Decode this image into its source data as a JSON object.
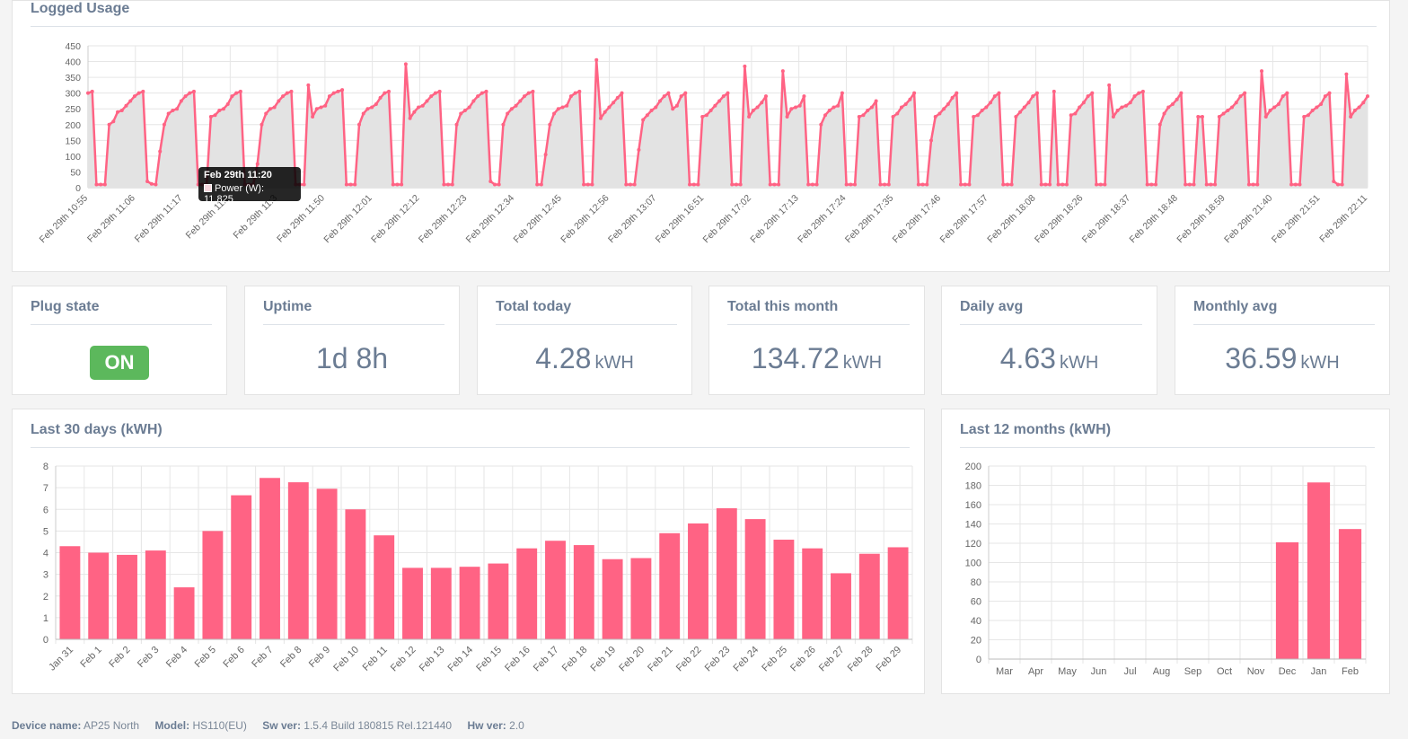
{
  "logged_usage": {
    "title": "Logged Usage",
    "tooltip": {
      "title": "Feb 29th 11:20",
      "label": "Power (W): 11.825"
    }
  },
  "stats": {
    "plug_state": {
      "title": "Plug state",
      "value": "ON"
    },
    "uptime": {
      "title": "Uptime",
      "value": "1d 8h"
    },
    "total_today": {
      "title": "Total today",
      "value": "4.28",
      "unit": "kWH"
    },
    "total_month": {
      "title": "Total this month",
      "value": "134.72",
      "unit": "kWH"
    },
    "daily_avg": {
      "title": "Daily avg",
      "value": "4.63",
      "unit": "kWH"
    },
    "monthly_avg": {
      "title": "Monthly avg",
      "value": "36.59",
      "unit": "kWH"
    }
  },
  "last30": {
    "title": "Last 30 days (kWH)"
  },
  "last12": {
    "title": "Last 12 months (kWH)"
  },
  "footer": {
    "device_label": "Device name:",
    "device_value": "AP25 North",
    "model_label": "Model:",
    "model_value": "HS110(EU)",
    "sw_label": "Sw ver:",
    "sw_value": "1.5.4 Build 180815 Rel.121440",
    "hw_label": "Hw ver:",
    "hw_value": "2.0"
  },
  "colors": {
    "accent": "#ff6384",
    "fill": "#e3e3e3",
    "on": "#5cb85c",
    "text": "#6b7c93"
  },
  "chart_data": [
    {
      "type": "area",
      "series": [
        {
          "name": "Power (W)"
        }
      ],
      "ylim": [
        0,
        450
      ],
      "yticks": [
        0,
        50,
        100,
        150,
        200,
        250,
        300,
        350,
        400,
        450
      ],
      "x_tick_labels": [
        "Feb 29th 10:55",
        "Feb 29th 11:06",
        "Feb 29th 11:17",
        "Feb 29th 11:2",
        "Feb 29th 11:3",
        "Feb 29th 11:50",
        "Feb 29th 12:01",
        "Feb 29th 12:12",
        "Feb 29th 12:23",
        "Feb 29th 12:34",
        "Feb 29th 12:45",
        "Feb 29th 12:56",
        "Feb 29th 13:07",
        "Feb 29th 16:51",
        "Feb 29th 17:02",
        "Feb 29th 17:13",
        "Feb 29th 17:24",
        "Feb 29th 17:35",
        "Feb 29th 17:46",
        "Feb 29th 17:57",
        "Feb 29th 18:08",
        "Feb 29th 18:26",
        "Feb 29th 18:37",
        "Feb 29th 18:48",
        "Feb 29th 18:59",
        "Feb 29th 21:40",
        "Feb 29th 21:51",
        "Feb 29th 22:11"
      ],
      "values": [
        300,
        305,
        10,
        10,
        10,
        200,
        210,
        240,
        245,
        260,
        275,
        290,
        300,
        305,
        20,
        12,
        10,
        115,
        200,
        235,
        245,
        250,
        275,
        290,
        300,
        305,
        10,
        10,
        10,
        225,
        230,
        245,
        250,
        265,
        290,
        300,
        305,
        10,
        10,
        10,
        75,
        200,
        235,
        250,
        255,
        275,
        290,
        300,
        305,
        10,
        10,
        10,
        325,
        225,
        250,
        255,
        260,
        290,
        300,
        305,
        310,
        10,
        10,
        10,
        200,
        235,
        250,
        255,
        265,
        285,
        300,
        305,
        10,
        10,
        10,
        392,
        220,
        240,
        255,
        260,
        275,
        290,
        300,
        305,
        10,
        10,
        10,
        200,
        235,
        245,
        255,
        275,
        290,
        300,
        305,
        20,
        10,
        10,
        200,
        235,
        250,
        260,
        275,
        290,
        300,
        305,
        10,
        10,
        105,
        200,
        235,
        250,
        255,
        260,
        290,
        300,
        305,
        10,
        10,
        10,
        405,
        220,
        240,
        255,
        270,
        285,
        300,
        10,
        10,
        10,
        120,
        215,
        230,
        245,
        255,
        275,
        290,
        300,
        250,
        260,
        290,
        300,
        10,
        10,
        10,
        225,
        230,
        245,
        260,
        275,
        290,
        300,
        10,
        10,
        10,
        385,
        225,
        245,
        255,
        270,
        290,
        10,
        10,
        10,
        370,
        225,
        250,
        255,
        260,
        290,
        10,
        10,
        10,
        200,
        230,
        245,
        255,
        260,
        300,
        10,
        10,
        10,
        225,
        230,
        245,
        255,
        275,
        10,
        10,
        10,
        225,
        235,
        255,
        265,
        280,
        300,
        10,
        10,
        10,
        150,
        225,
        235,
        250,
        265,
        285,
        300,
        10,
        10,
        10,
        225,
        230,
        245,
        255,
        270,
        290,
        300,
        10,
        10,
        10,
        225,
        240,
        255,
        270,
        290,
        300,
        10,
        10,
        10,
        305,
        10,
        10,
        10,
        230,
        235,
        255,
        270,
        290,
        300,
        10,
        10,
        10,
        325,
        225,
        245,
        255,
        260,
        270,
        290,
        300,
        305,
        10,
        10,
        10,
        200,
        235,
        255,
        265,
        280,
        300,
        10,
        10,
        10,
        225,
        225,
        10,
        10,
        10,
        225,
        235,
        245,
        255,
        270,
        290,
        300,
        10,
        10,
        10,
        370,
        225,
        245,
        255,
        265,
        290,
        300,
        10,
        10,
        10,
        225,
        230,
        245,
        255,
        265,
        290,
        300,
        20,
        10,
        10,
        360,
        225,
        245,
        255,
        270,
        290
      ]
    },
    {
      "type": "bar",
      "categories": [
        "Jan 31",
        "Feb 1",
        "Feb 2",
        "Feb 3",
        "Feb 4",
        "Feb 5",
        "Feb 6",
        "Feb 7",
        "Feb 8",
        "Feb 9",
        "Feb 10",
        "Feb 11",
        "Feb 12",
        "Feb 13",
        "Feb 14",
        "Feb 15",
        "Feb 16",
        "Feb 17",
        "Feb 18",
        "Feb 19",
        "Feb 20",
        "Feb 21",
        "Feb 22",
        "Feb 23",
        "Feb 24",
        "Feb 25",
        "Feb 26",
        "Feb 27",
        "Feb 28",
        "Feb 29"
      ],
      "values": [
        4.3,
        4.0,
        3.9,
        4.1,
        2.4,
        5.0,
        6.65,
        7.45,
        7.25,
        6.95,
        6.0,
        4.8,
        3.3,
        3.3,
        3.35,
        3.5,
        4.2,
        4.55,
        4.35,
        3.7,
        3.75,
        4.9,
        5.35,
        6.05,
        5.55,
        4.6,
        4.2,
        3.05,
        3.95,
        4.25
      ],
      "ylim": [
        0,
        8
      ],
      "yticks": [
        0,
        1,
        2,
        3,
        4,
        5,
        6,
        7,
        8
      ]
    },
    {
      "type": "bar",
      "categories": [
        "Mar",
        "Apr",
        "May",
        "Jun",
        "Jul",
        "Aug",
        "Sep",
        "Oct",
        "Nov",
        "Dec",
        "Jan",
        "Feb"
      ],
      "values": [
        0,
        0,
        0,
        0,
        0,
        0,
        0,
        0,
        0,
        121,
        183,
        134.72
      ],
      "ylim": [
        0,
        200
      ],
      "yticks": [
        0,
        20,
        40,
        60,
        80,
        100,
        120,
        140,
        160,
        180,
        200
      ]
    }
  ]
}
